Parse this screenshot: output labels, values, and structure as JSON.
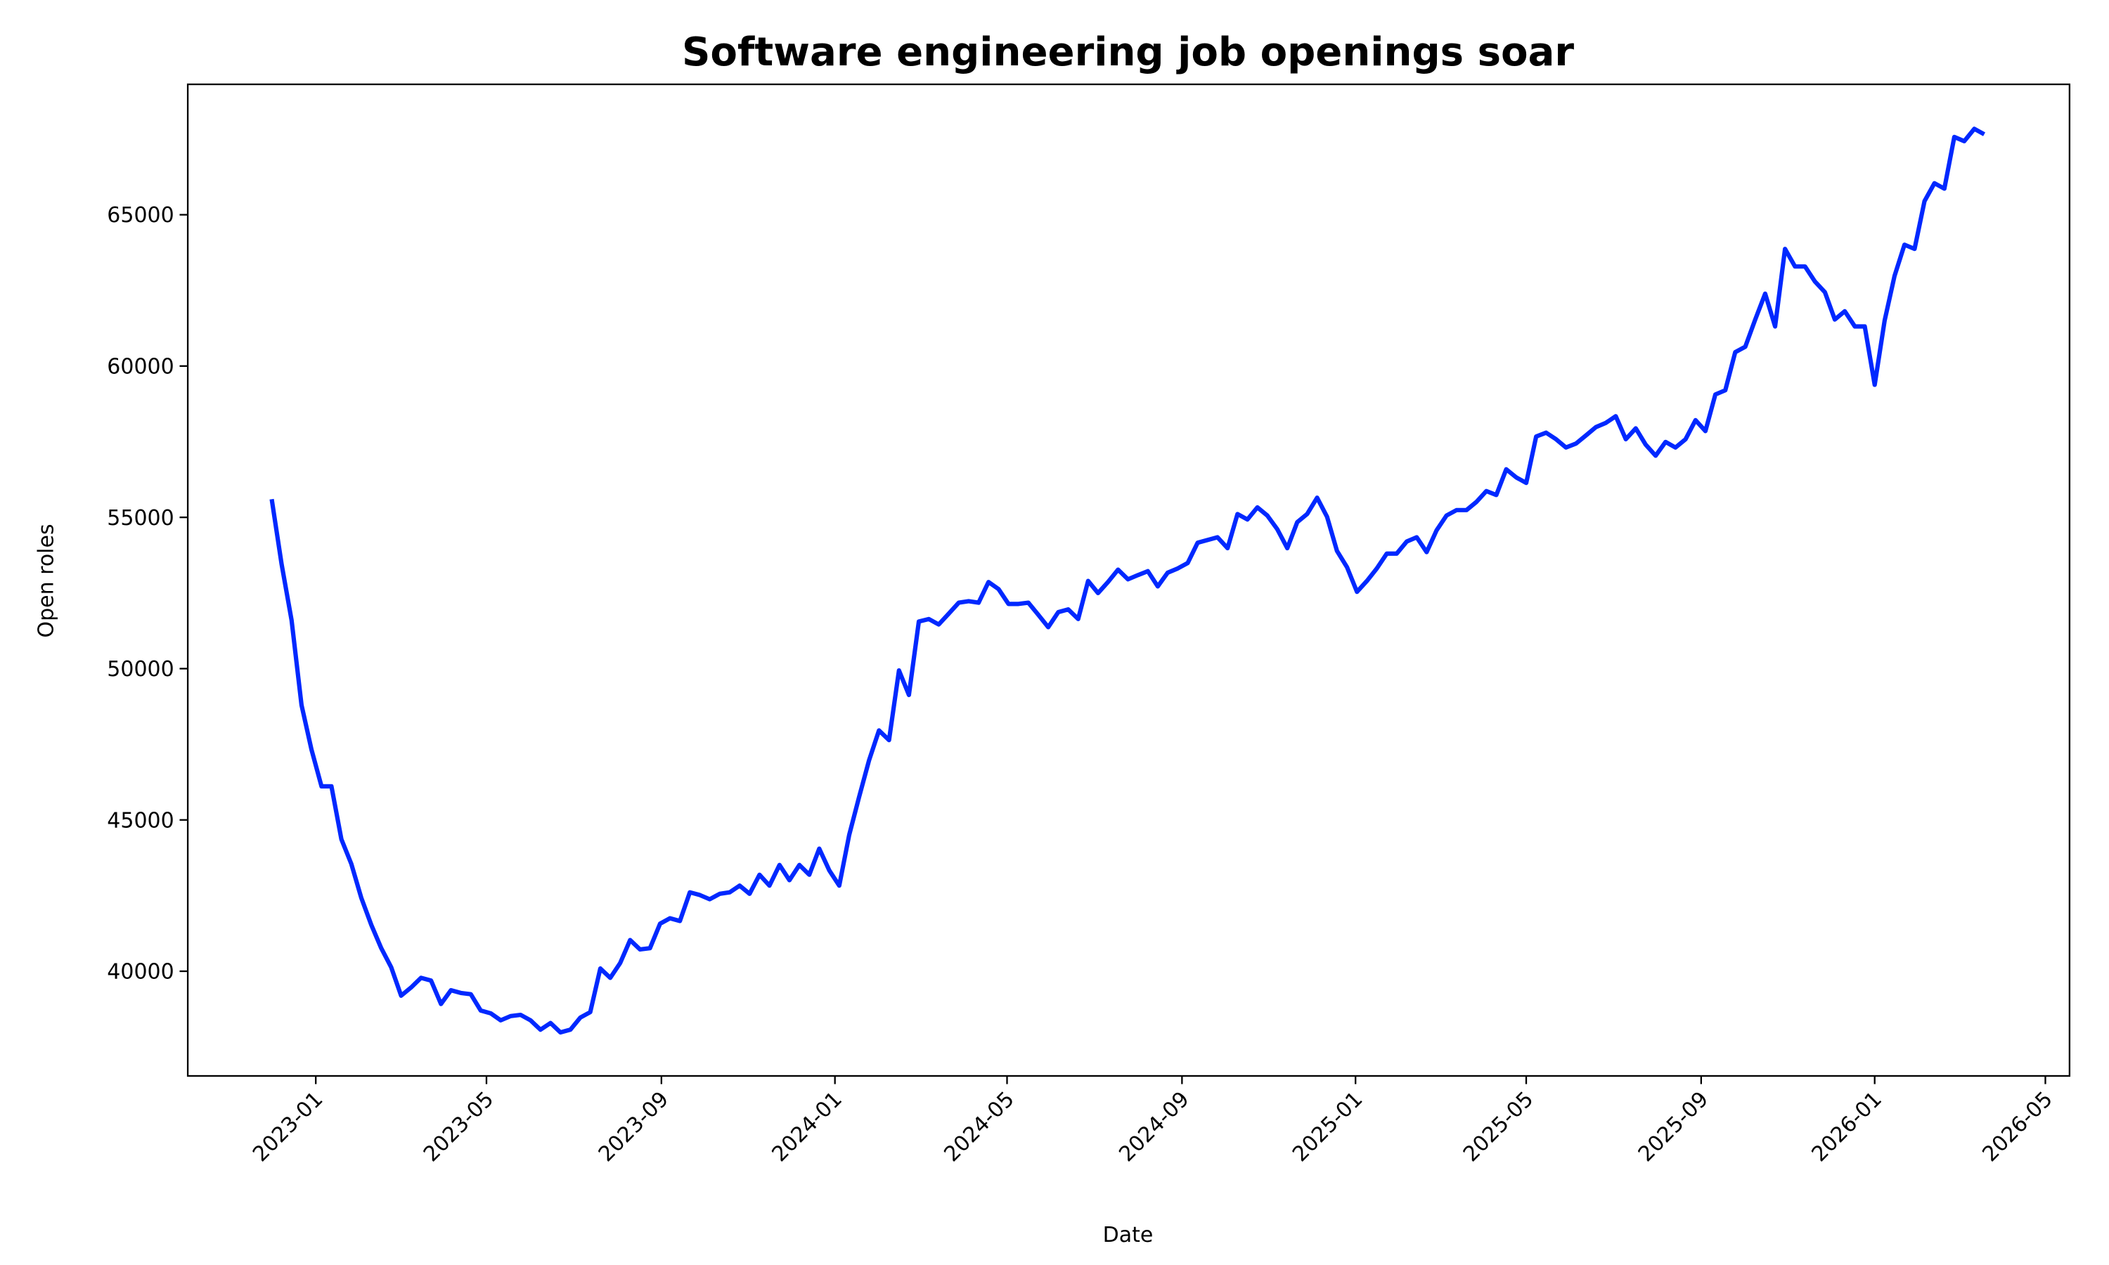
{
  "chart_data": {
    "type": "line",
    "title": "Software engineering job openings soar",
    "xlabel": "Date",
    "ylabel": "Open roles",
    "xlim": [
      "2022-10-03",
      "2026-05-18"
    ],
    "ylim": [
      36540,
      69310
    ],
    "grid": false,
    "line_color": "#0028ff",
    "x_ticks": [
      "2023-01",
      "2023-05",
      "2023-09",
      "2024-01",
      "2024-05",
      "2024-09",
      "2025-01",
      "2025-05",
      "2025-09",
      "2026-01",
      "2026-05"
    ],
    "y_ticks": [
      40000,
      45000,
      50000,
      55000,
      60000,
      65000
    ],
    "x": [
      "2022-12-01",
      "2022-12-08",
      "2022-12-15",
      "2022-12-22",
      "2022-12-29",
      "2023-01-05",
      "2023-01-12",
      "2023-01-19",
      "2023-01-26",
      "2023-02-02",
      "2023-02-09",
      "2023-02-16",
      "2023-02-23",
      "2023-03-02",
      "2023-03-09",
      "2023-03-16",
      "2023-03-23",
      "2023-03-30",
      "2023-04-06",
      "2023-04-13",
      "2023-04-20",
      "2023-04-27",
      "2023-05-04",
      "2023-05-11",
      "2023-05-18",
      "2023-05-25",
      "2023-06-01",
      "2023-06-08",
      "2023-06-15",
      "2023-06-22",
      "2023-06-29",
      "2023-07-06",
      "2023-07-13",
      "2023-07-20",
      "2023-07-27",
      "2023-08-03",
      "2023-08-10",
      "2023-08-17",
      "2023-08-24",
      "2023-08-31",
      "2023-09-07",
      "2023-09-14",
      "2023-09-21",
      "2023-09-28",
      "2023-10-05",
      "2023-10-12",
      "2023-10-19",
      "2023-10-26",
      "2023-11-02",
      "2023-11-09",
      "2023-11-16",
      "2023-11-23",
      "2023-11-30",
      "2023-12-07",
      "2023-12-14",
      "2023-12-21",
      "2023-12-28",
      "2024-01-04",
      "2024-01-11",
      "2024-01-18",
      "2024-01-25",
      "2024-02-01",
      "2024-02-08",
      "2024-02-15",
      "2024-02-22",
      "2024-02-29",
      "2024-03-07",
      "2024-03-14",
      "2024-03-21",
      "2024-03-28",
      "2024-04-04",
      "2024-04-11",
      "2024-04-18",
      "2024-04-25",
      "2024-05-02",
      "2024-05-09",
      "2024-05-16",
      "2024-05-23",
      "2024-05-30",
      "2024-06-06",
      "2024-06-13",
      "2024-06-20",
      "2024-06-27",
      "2024-07-04",
      "2024-07-11",
      "2024-07-18",
      "2024-07-25",
      "2024-08-01",
      "2024-08-08",
      "2024-08-15",
      "2024-08-22",
      "2024-08-29",
      "2024-09-05",
      "2024-09-12",
      "2024-09-19",
      "2024-09-26",
      "2024-10-03",
      "2024-10-10",
      "2024-10-17",
      "2024-10-24",
      "2024-10-31",
      "2024-11-07",
      "2024-11-14",
      "2024-11-21",
      "2024-11-28",
      "2024-12-05",
      "2024-12-12",
      "2024-12-19",
      "2024-12-26",
      "2025-01-02",
      "2025-01-09",
      "2025-01-16",
      "2025-01-23",
      "2025-01-30",
      "2025-02-06",
      "2025-02-13",
      "2025-02-20",
      "2025-02-27",
      "2025-03-06",
      "2025-03-13",
      "2025-03-20",
      "2025-03-27",
      "2025-04-03",
      "2025-04-10",
      "2025-04-17",
      "2025-04-24",
      "2025-05-01",
      "2025-05-08",
      "2025-05-15",
      "2025-05-22",
      "2025-05-29",
      "2025-06-05",
      "2025-06-12",
      "2025-06-19",
      "2025-06-26",
      "2025-07-03",
      "2025-07-10",
      "2025-07-17",
      "2025-07-24",
      "2025-07-31",
      "2025-08-07",
      "2025-08-14",
      "2025-08-21",
      "2025-08-28",
      "2025-09-04",
      "2025-09-11",
      "2025-09-18",
      "2025-09-25",
      "2025-10-02",
      "2025-10-09",
      "2025-10-16",
      "2025-10-23",
      "2025-10-30",
      "2025-11-06",
      "2025-11-13",
      "2025-11-20",
      "2025-11-27",
      "2025-12-04",
      "2025-12-11",
      "2025-12-18",
      "2025-12-25",
      "2026-01-01",
      "2026-01-08",
      "2026-01-15",
      "2026-01-22",
      "2026-01-29",
      "2026-02-05",
      "2026-02-12",
      "2026-02-19",
      "2026-02-26",
      "2026-03-05",
      "2026-03-12",
      "2026-03-19"
    ],
    "y": [
      55600,
      53440,
      51600,
      48800,
      47330,
      46110,
      46110,
      44360,
      43550,
      42430,
      41530,
      40760,
      40130,
      39190,
      39460,
      39780,
      39690,
      38920,
      39370,
      39280,
      39240,
      38700,
      38610,
      38380,
      38520,
      38560,
      38380,
      38070,
      38290,
      37980,
      38070,
      38470,
      38650,
      40090,
      39780,
      40270,
      41030,
      40720,
      40760,
      41570,
      41750,
      41660,
      42610,
      42520,
      42380,
      42560,
      42610,
      42830,
      42560,
      43190,
      42830,
      43510,
      43010,
      43510,
      43190,
      44050,
      43330,
      42830,
      44500,
      45760,
      46970,
      47960,
      47640,
      49940,
      49130,
      51560,
      51640,
      51460,
      51820,
      52180,
      52230,
      52180,
      52860,
      52630,
      52140,
      52140,
      52180,
      51780,
      51370,
      51870,
      51960,
      51640,
      52900,
      52500,
      52860,
      53270,
      52950,
      53090,
      53220,
      52720,
      53170,
      53310,
      53490,
      54160,
      54250,
      54340,
      53980,
      55110,
      54930,
      55330,
      55060,
      54610,
      53980,
      54840,
      55110,
      55650,
      55020,
      53890,
      53350,
      52540,
      52900,
      53310,
      53800,
      53800,
      54200,
      54340,
      53850,
      54570,
      55060,
      55240,
      55240,
      55510,
      55870,
      55740,
      56590,
      56320,
      56140,
      57670,
      57800,
      57580,
      57310,
      57440,
      57710,
      57980,
      58120,
      58340,
      57580,
      57940,
      57400,
      57040,
      57490,
      57310,
      57580,
      58210,
      57850,
      59060,
      59200,
      60460,
      60640,
      61540,
      62390,
      61310,
      63870,
      63290,
      63290,
      62790,
      62440,
      61540,
      61810,
      61310,
      61310,
      59380,
      61500,
      62980,
      64010,
      63870,
      65450,
      66040,
      65860,
      67570,
      67430,
      67840,
      67660
    ]
  }
}
